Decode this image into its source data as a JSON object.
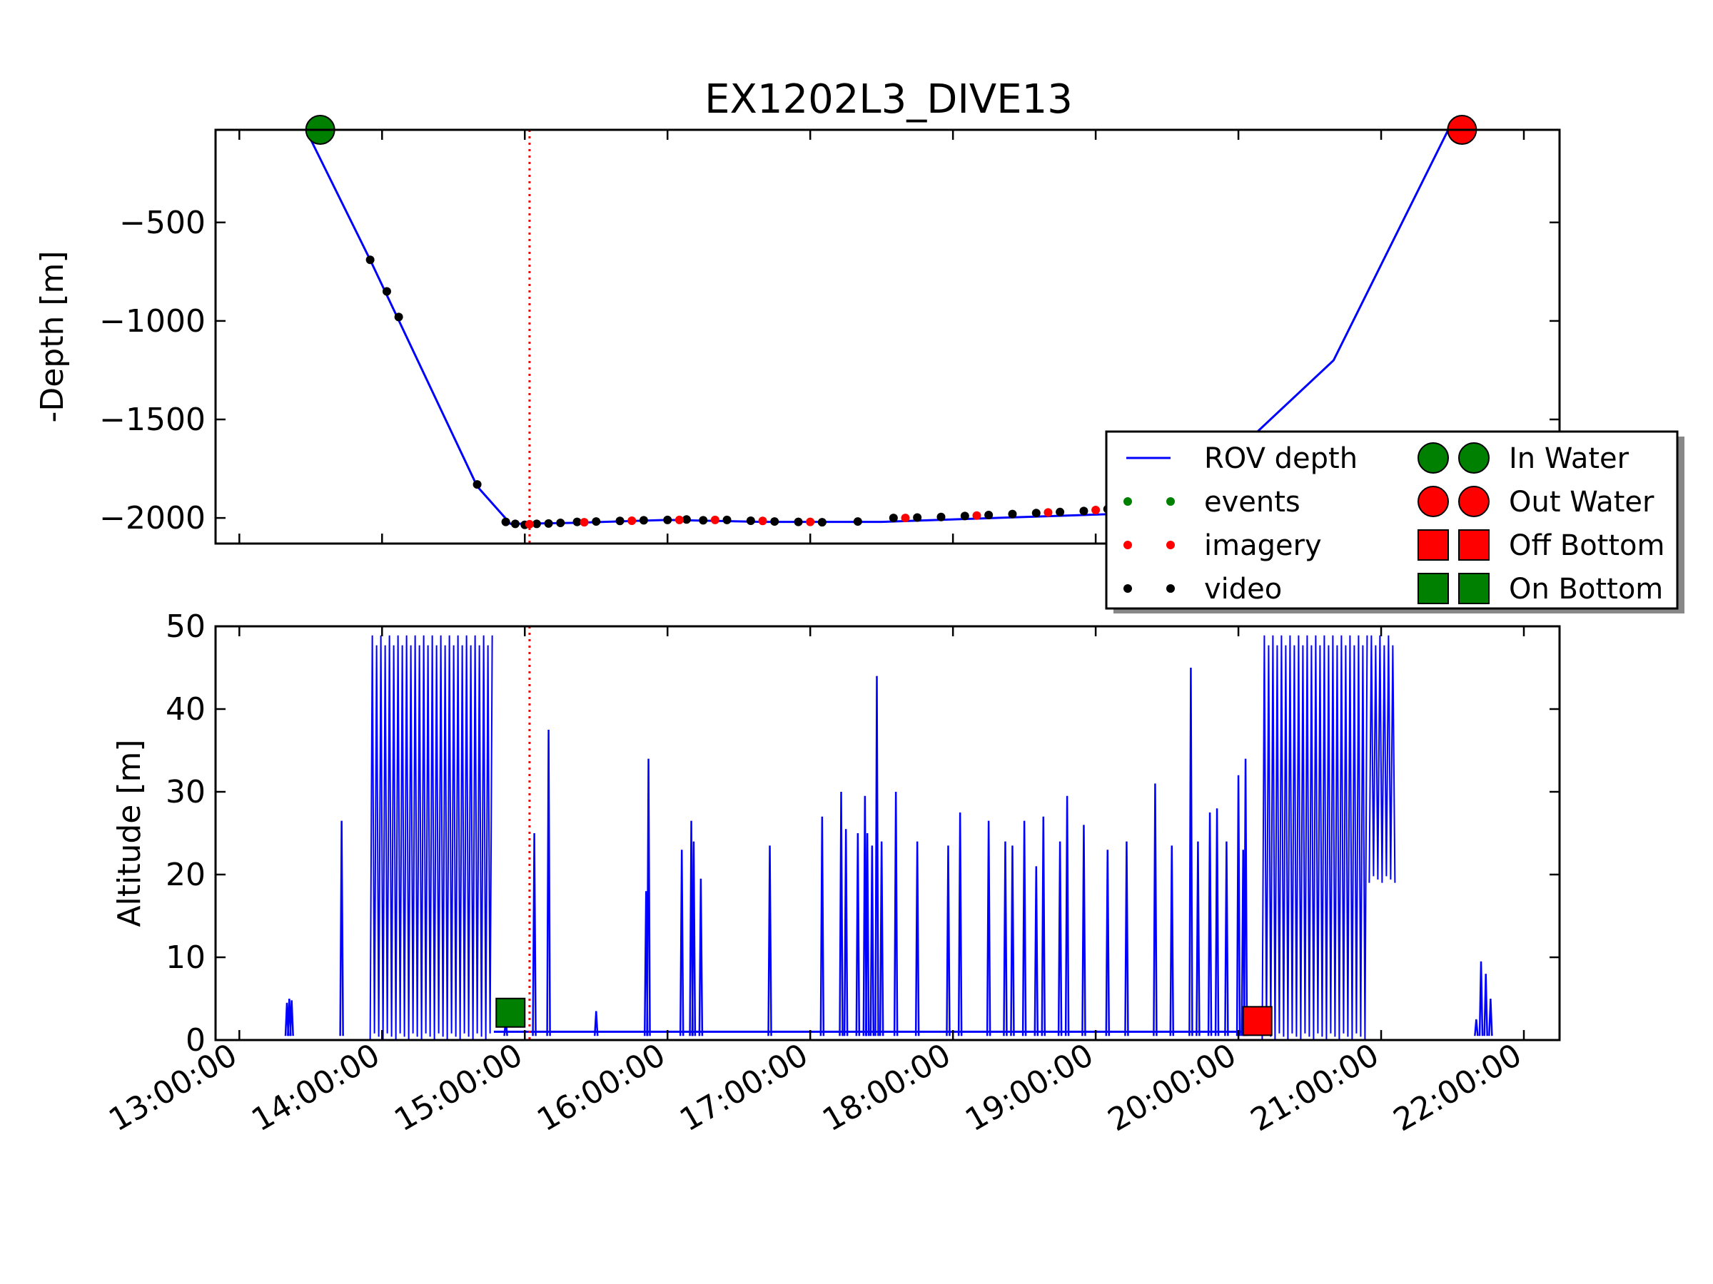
{
  "chart_data": [
    {
      "panel": "depth",
      "type": "line",
      "title": "EX1202L3_DIVE13",
      "ylabel": "-Depth [m]",
      "xlabel": "",
      "xlim": [
        "12:50:00",
        "22:15:00"
      ],
      "ylim": [
        -2130,
        -30
      ],
      "y_ticks": [
        -500,
        -1000,
        -1500,
        -2000
      ],
      "y_tick_labels": [
        "−500",
        "−1000",
        "−1500",
        "−2000"
      ],
      "grid": false,
      "legend_position": "right-middle, overlapping both panels",
      "series": [
        {
          "name": "ROV depth",
          "color": "#0000ff",
          "x": [
            "13:28:00",
            "13:55:00",
            "14:40:00",
            "14:54:00",
            "15:20:00",
            "16:00:00",
            "16:40:00",
            "17:30:00",
            "18:30:00",
            "19:20:00",
            "19:35:00",
            "20:40:00",
            "21:28:00",
            "21:38:00"
          ],
          "y": [
            -30,
            -690,
            -1840,
            -2030,
            -2025,
            -2010,
            -2020,
            -2020,
            -1995,
            -1975,
            -1935,
            -1200,
            -35,
            -25
          ]
        },
        {
          "name": "video",
          "color": "#000000",
          "x": [
            "13:55:00",
            "14:02:00",
            "14:07:00",
            "14:40:00",
            "14:52:00",
            "14:56:00",
            "15:00:00",
            "15:05:00",
            "15:10:00",
            "15:15:00",
            "15:22:00",
            "15:30:00",
            "15:40:00",
            "15:50:00",
            "16:00:00",
            "16:08:00",
            "16:15:00",
            "16:25:00",
            "16:35:00",
            "16:45:00",
            "16:55:00",
            "17:05:00",
            "17:20:00",
            "17:35:00",
            "17:45:00",
            "17:55:00",
            "18:05:00",
            "18:15:00",
            "18:25:00",
            "18:35:00",
            "18:45:00",
            "18:55:00",
            "19:05:00",
            "19:15:00",
            "21:30:00",
            "21:32:00",
            "21:34:00",
            "21:36:00",
            "21:38:00"
          ],
          "y": [
            -690,
            -850,
            -980,
            -1830,
            -2020,
            -2030,
            -2035,
            -2030,
            -2028,
            -2025,
            -2020,
            -2018,
            -2015,
            -2012,
            -2010,
            -2008,
            -2012,
            -2010,
            -2014,
            -2018,
            -2020,
            -2022,
            -2018,
            -2000,
            -1998,
            -1995,
            -1990,
            -1985,
            -1980,
            -1975,
            -1970,
            -1965,
            -1955,
            -1945,
            -25,
            -20,
            -18,
            -15,
            -15
          ]
        },
        {
          "name": "imagery",
          "color": "#ff0000",
          "x": [
            "15:02:00",
            "15:25:00",
            "15:45:00",
            "16:05:00",
            "16:20:00",
            "16:40:00",
            "17:00:00",
            "17:40:00",
            "18:10:00",
            "18:40:00",
            "19:00:00"
          ],
          "y": [
            -2032,
            -2022,
            -2014,
            -2010,
            -2010,
            -2015,
            -2020,
            -2000,
            -1988,
            -1972,
            -1960
          ]
        },
        {
          "name": "events",
          "color": "#008000",
          "x": [],
          "y": []
        },
        {
          "name": "In Water",
          "color": "#008000",
          "marker": "circle",
          "x": [
            "13:34:00"
          ],
          "y": [
            -30
          ]
        },
        {
          "name": "Out Water",
          "color": "#ff0000",
          "marker": "circle",
          "x": [
            "21:34:00"
          ],
          "y": [
            -30
          ]
        }
      ]
    },
    {
      "panel": "altitude",
      "type": "line",
      "ylabel": "Altitude [m]",
      "xlabel": "",
      "xlim": [
        "12:50:00",
        "22:15:00"
      ],
      "ylim": [
        0,
        50
      ],
      "y_ticks": [
        0,
        10,
        20,
        30,
        40,
        50
      ],
      "y_tick_labels": [
        "0",
        "10",
        "20",
        "30",
        "40",
        "50"
      ],
      "x_ticks": [
        "13:00:00",
        "14:00:00",
        "15:00:00",
        "16:00:00",
        "17:00:00",
        "18:00:00",
        "19:00:00",
        "20:00:00",
        "21:00:00",
        "22:00:00"
      ],
      "grid": false,
      "series": [
        {
          "name": "altitude",
          "color": "#0000ff",
          "spikes_x": [
            "13:20:00",
            "13:21:00",
            "13:22:00",
            "13:43:00",
            "14:52:00",
            "15:04:00",
            "15:10:00",
            "15:30:00",
            "15:51:00",
            "15:52:00",
            "16:06:00",
            "16:10:00",
            "16:11:00",
            "16:14:00",
            "16:43:00",
            "17:05:00",
            "17:13:00",
            "17:15:00",
            "17:20:00",
            "17:23:00",
            "17:24:00",
            "17:26:00",
            "17:28:00",
            "17:30:00",
            "17:36:00",
            "17:45:00",
            "17:58:00",
            "18:03:00",
            "18:15:00",
            "18:22:00",
            "18:25:00",
            "18:30:00",
            "18:35:00",
            "18:38:00",
            "18:45:00",
            "18:48:00",
            "18:55:00",
            "19:05:00",
            "19:13:00",
            "19:25:00",
            "19:32:00",
            "19:40:00",
            "19:43:00",
            "19:48:00",
            "19:51:00",
            "19:55:00",
            "20:00:00",
            "20:02:00",
            "20:03:00",
            "21:40:00",
            "21:42:00",
            "21:44:00",
            "21:46:00"
          ],
          "spikes_y": [
            4.5,
            5,
            4.8,
            26.5,
            2.5,
            25,
            37.5,
            3.5,
            18,
            34,
            23,
            26.5,
            24,
            19.5,
            23.5,
            27,
            30,
            25.5,
            25,
            29.5,
            25,
            23.5,
            44,
            24,
            30,
            24,
            23.5,
            27.5,
            26.5,
            24,
            23.5,
            26.5,
            21,
            27,
            24,
            29.5,
            26,
            23,
            24,
            31,
            23.5,
            45,
            24,
            27.5,
            28,
            24,
            32,
            23,
            34,
            2.5,
            9.5,
            8,
            5
          ],
          "dense_band_1": [
            "13:55:00",
            "14:47:00",
            0,
            49.5
          ],
          "dense_band_2": [
            "20:10:00",
            "20:55:00",
            0,
            49.5
          ],
          "dense_band_3": [
            "20:55:00",
            "21:06:00",
            19,
            49.5
          ]
        },
        {
          "name": "On Bottom",
          "color": "#008000",
          "marker": "square",
          "x": [
            "14:54:00"
          ],
          "y": [
            3.3
          ]
        },
        {
          "name": "Off Bottom",
          "color": "#ff0000",
          "marker": "square",
          "x": [
            "20:08:00"
          ],
          "y": [
            2.3
          ]
        }
      ]
    }
  ],
  "marker_line": {
    "x": "15:02:00",
    "color": "#ff0000",
    "style": "dotted"
  },
  "legend": {
    "entries": [
      {
        "label": "ROV depth",
        "kind": "line",
        "color": "#0000ff"
      },
      {
        "label": "events",
        "kind": "dot",
        "color": "#008000"
      },
      {
        "label": "imagery",
        "kind": "dot",
        "color": "#ff0000"
      },
      {
        "label": "video",
        "kind": "dot",
        "color": "#000000"
      },
      {
        "label": "In Water",
        "kind": "circle",
        "color": "#008000"
      },
      {
        "label": "Out Water",
        "kind": "circle",
        "color": "#ff0000"
      },
      {
        "label": "Off Bottom",
        "kind": "square",
        "color": "#ff0000"
      },
      {
        "label": "On Bottom",
        "kind": "square",
        "color": "#008000"
      }
    ]
  }
}
